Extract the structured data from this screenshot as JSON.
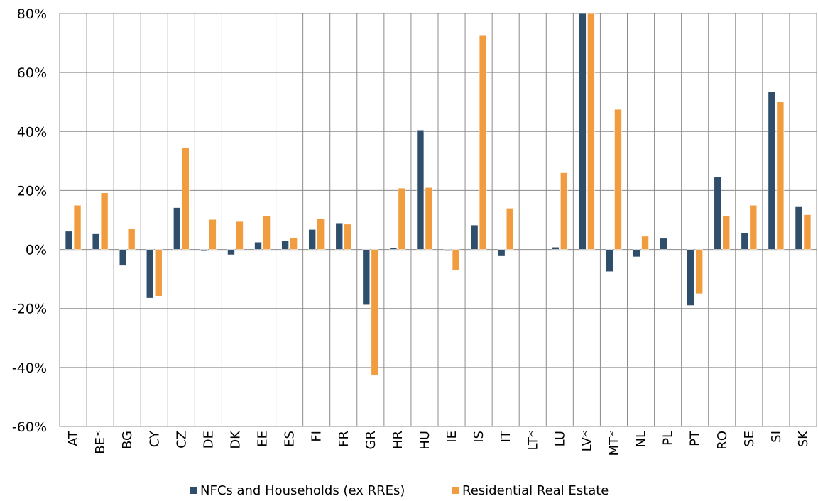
{
  "chart_data": {
    "type": "bar",
    "categories": [
      "AT",
      "BE*",
      "BG",
      "CY",
      "CZ",
      "DE",
      "DK",
      "EE",
      "ES",
      "FI",
      "FR",
      "GR",
      "HR",
      "HU",
      "IE",
      "IS",
      "IT",
      "LT*",
      "LU",
      "LV*",
      "MT*",
      "NL",
      "PL",
      "PT",
      "RO",
      "SE",
      "SI",
      "SK"
    ],
    "series": [
      {
        "name": "NFCs and Households (ex RREs)",
        "color": "#2f4e6c",
        "values": [
          6.2,
          5.3,
          -5.5,
          -16.5,
          14.2,
          -0.3,
          -1.8,
          2.5,
          3.0,
          6.8,
          9.0,
          -18.8,
          0.5,
          40.5,
          -0.2,
          8.3,
          -2.3,
          0.0,
          0.8,
          80.0,
          -7.5,
          -2.5,
          3.8,
          -19.0,
          24.5,
          5.7,
          53.5,
          14.7
        ]
      },
      {
        "name": "Residential Real Estate",
        "color": "#f09c3f",
        "values": [
          15.0,
          19.2,
          7.0,
          -15.8,
          34.5,
          10.2,
          9.5,
          11.5,
          4.0,
          10.4,
          8.6,
          -42.5,
          20.8,
          21.0,
          -7.0,
          72.5,
          14.0,
          0.0,
          26.0,
          80.0,
          47.5,
          4.5,
          0.0,
          -15.0,
          11.5,
          15.0,
          50.0,
          11.8
        ]
      }
    ],
    "yticks": [
      "80%",
      "60%",
      "40%",
      "20%",
      "0%",
      "-20%",
      "-40%",
      "-60%"
    ],
    "ylim": [
      -60,
      80
    ],
    "title": "",
    "xlabel": "",
    "ylabel": "",
    "grid": true,
    "legend_position": "bottom"
  }
}
